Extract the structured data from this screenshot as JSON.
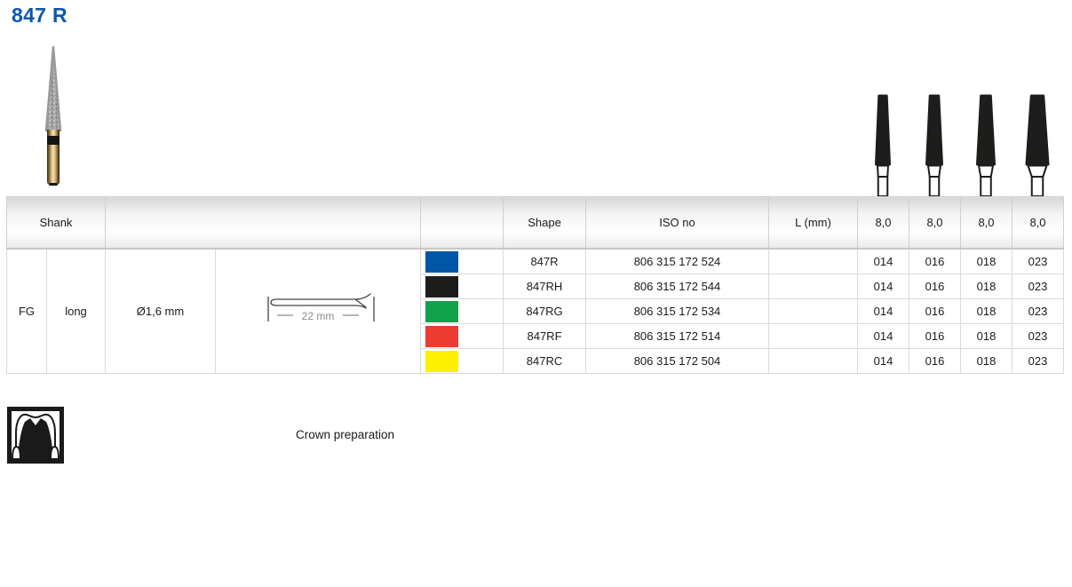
{
  "page_title": "847 R",
  "product_image": {
    "name": "diamond-bur-photo"
  },
  "table": {
    "headers": {
      "shank": "Shank",
      "shape": "Shape",
      "iso": "ISO no",
      "length": "L (mm)",
      "head_lengths": [
        "8,0",
        "8,0",
        "8,0",
        "8,0"
      ]
    },
    "shank_specs": {
      "type": "FG",
      "length": "long",
      "diameter": "Ø1,6 mm",
      "shank_dim_label": "22 mm"
    },
    "rows": [
      {
        "color_name": "blue",
        "color_hex": "#0057a8",
        "shape": "847R",
        "iso": "806 315 172 524",
        "sizes": [
          "014",
          "016",
          "018",
          "023"
        ]
      },
      {
        "color_name": "black",
        "color_hex": "#1d1d1b",
        "shape": "847RH",
        "iso": "806 315 172 544",
        "sizes": [
          "014",
          "016",
          "018",
          "023"
        ]
      },
      {
        "color_name": "green",
        "color_hex": "#12a24b",
        "shape": "847RG",
        "iso": "806 315 172 534",
        "sizes": [
          "014",
          "016",
          "018",
          "023"
        ]
      },
      {
        "color_name": "red",
        "color_hex": "#ee3b30",
        "shape": "847RF",
        "iso": "806 315 172 514",
        "sizes": [
          "014",
          "016",
          "018",
          "023"
        ]
      },
      {
        "color_name": "yellow",
        "color_hex": "#ffef00",
        "shape": "847RC",
        "iso": "806 315 172 504",
        "sizes": [
          "014",
          "016",
          "018",
          "023"
        ]
      }
    ]
  },
  "silhouettes": {
    "sizes": [
      "014",
      "016",
      "018",
      "023"
    ]
  },
  "footer": {
    "icon": "crown-preparation-icon",
    "label": "Crown preparation"
  }
}
